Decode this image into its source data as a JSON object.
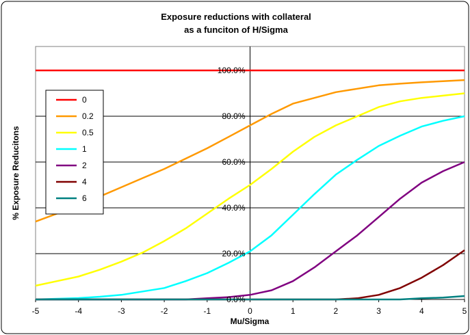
{
  "chart_data": {
    "type": "line",
    "title_line1": "Exposure reductions with collateral",
    "title_line2": "as a funciton of H/Sigma",
    "xlabel": "Mu/Sigma",
    "ylabel": "% Exposure Reducitons",
    "xlim": [
      -5,
      5
    ],
    "ylim": [
      0,
      100
    ],
    "x_ticks": [
      "-5",
      "-4",
      "-3",
      "-2",
      "-1",
      "0",
      "1",
      "2",
      "3",
      "4",
      "5"
    ],
    "y_ticks": [
      "0.0%",
      "20.0%",
      "40.0%",
      "60.0%",
      "80.0%",
      "100.0%"
    ],
    "grid": true,
    "legend_position": "left",
    "x": [
      -5,
      -4.5,
      -4,
      -3.5,
      -3,
      -2.5,
      -2,
      -1.5,
      -1,
      -0.5,
      0,
      0.5,
      1,
      1.5,
      2,
      2.5,
      3,
      3.5,
      4,
      4.5,
      5
    ],
    "series": [
      {
        "name": "0",
        "color": "#ff0000",
        "values": [
          100,
          100,
          100,
          100,
          100,
          100,
          100,
          100,
          100,
          100,
          100,
          100,
          100,
          100,
          100,
          100,
          100,
          100,
          100,
          100,
          100
        ]
      },
      {
        "name": "0.2",
        "color": "#ff9900",
        "values": [
          34,
          37.5,
          41,
          45,
          49,
          53,
          57,
          61.5,
          66,
          71,
          76,
          81,
          85.5,
          88,
          90.5,
          92,
          93.5,
          94.2,
          94.8,
          95.3,
          95.8
        ]
      },
      {
        "name": "0.5",
        "color": "#ffff00",
        "values": [
          6,
          8,
          10,
          13,
          16.5,
          20.5,
          25.5,
          31,
          37.5,
          44,
          50,
          57,
          64.5,
          71,
          76,
          80,
          84,
          86.5,
          88,
          89,
          90
        ]
      },
      {
        "name": "1",
        "color": "#00ffff",
        "values": [
          0,
          0.3,
          0.6,
          1.2,
          2,
          3.5,
          5,
          8,
          11.5,
          16,
          21,
          28,
          37,
          46,
          54.5,
          61,
          67,
          71.5,
          75.5,
          78,
          80
        ]
      },
      {
        "name": "2",
        "color": "#800080",
        "values": [
          0,
          0,
          0,
          0,
          0,
          0,
          0,
          0,
          0.5,
          1,
          2,
          4,
          8,
          14,
          21,
          28,
          36,
          44,
          51,
          56,
          60
        ]
      },
      {
        "name": "4",
        "color": "#800000",
        "values": [
          0,
          0,
          0,
          0,
          0,
          0,
          0,
          0,
          0,
          0,
          0,
          0,
          0,
          0,
          0,
          0.5,
          2,
          5,
          9.5,
          15,
          21.5
        ]
      },
      {
        "name": "6",
        "color": "#008080",
        "values": [
          0,
          0,
          0,
          0,
          0,
          0,
          0,
          0,
          0,
          0,
          0,
          0,
          0,
          0,
          0,
          0,
          0,
          0,
          0.5,
          0.8,
          1.5
        ]
      }
    ]
  }
}
